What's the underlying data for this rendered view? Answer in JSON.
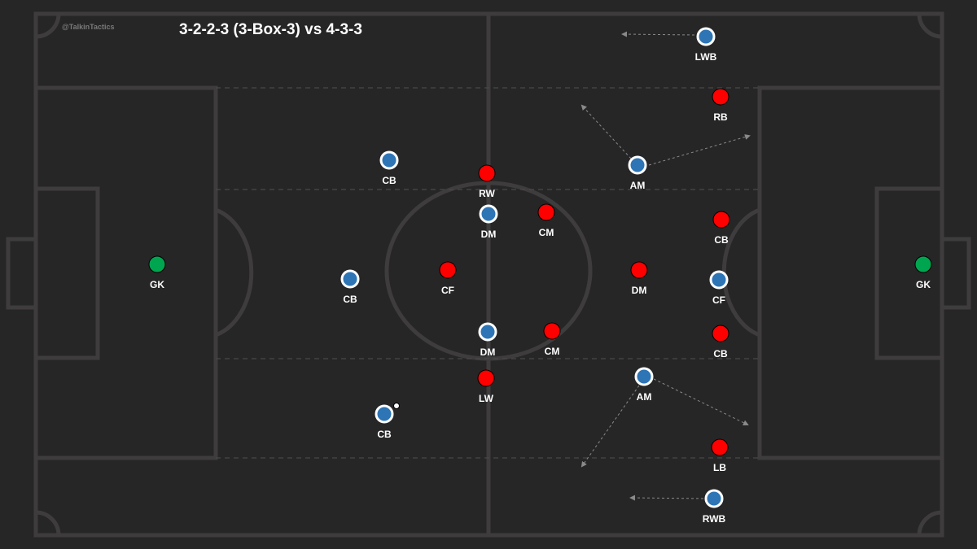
{
  "watermark": "@TalkinTactics",
  "title": "3-2-2-3 (3-Box-3) vs 4-3-3",
  "colors": {
    "background": "#262626",
    "pitch_lines": "#3e3c3c",
    "blue_team": "#2e75b6",
    "red_team": "#ff0000",
    "goalkeeper": "#00a550",
    "arrows": "#8a8a8a"
  },
  "blue_team": [
    {
      "label": "LWB"
    },
    {
      "label": "CB"
    },
    {
      "label": "DM"
    },
    {
      "label": "CB"
    },
    {
      "label": "DM"
    },
    {
      "label": "CB"
    },
    {
      "label": "AM"
    },
    {
      "label": "AM"
    },
    {
      "label": "CF"
    },
    {
      "label": "RWB"
    }
  ],
  "red_team": [
    {
      "label": "RB"
    },
    {
      "label": "RW"
    },
    {
      "label": "CM"
    },
    {
      "label": "CF"
    },
    {
      "label": "DM"
    },
    {
      "label": "CB"
    },
    {
      "label": "CB"
    },
    {
      "label": "CM"
    },
    {
      "label": "LW"
    },
    {
      "label": "LB"
    }
  ],
  "goalkeepers": [
    {
      "label": "GK"
    },
    {
      "label": "GK"
    }
  ],
  "ball": "ball-icon"
}
